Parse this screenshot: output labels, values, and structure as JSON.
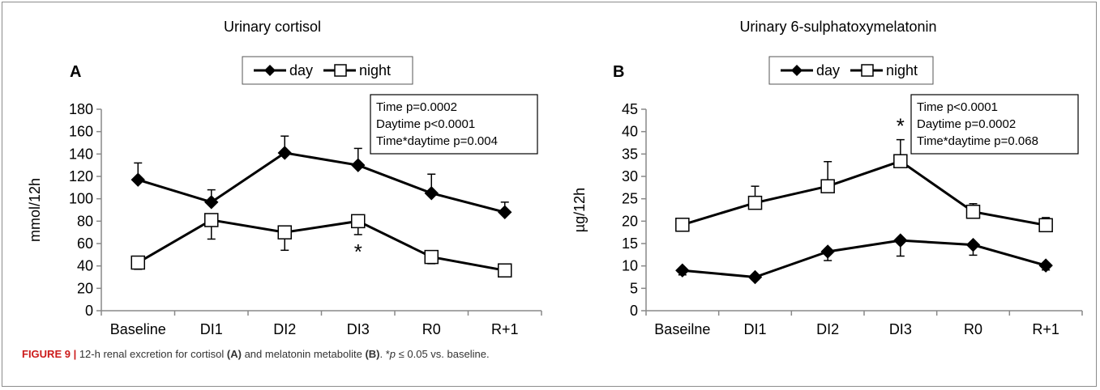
{
  "figure_label": "FIGURE 9 |",
  "caption": {
    "p1": " 12-h renal excretion for cortisol ",
    "a": "(A)",
    "p2": " and melatonin metabolite ",
    "b": "(B)",
    "p3": ". *",
    "p_italic": "p",
    "p4": " ≤ 0.05 vs. baseline."
  },
  "colors": {
    "axis": "#888888",
    "line": "#000000",
    "night_fill": "#ffffff",
    "day_fill": "#000000"
  },
  "chart_data": [
    {
      "type": "line",
      "panel": "A",
      "title": "Urinary cortisol",
      "ylabel": "mmol/12h",
      "xlabel": "",
      "categories": [
        "Baseline",
        "DI1",
        "DI2",
        "DI3",
        "R0",
        "R+1"
      ],
      "ylim": [
        0,
        180
      ],
      "yticks": [
        0,
        20,
        40,
        60,
        80,
        100,
        120,
        140,
        160,
        180
      ],
      "legend": {
        "placement": "top-center",
        "entries": [
          "day",
          "night"
        ]
      },
      "series": [
        {
          "name": "day",
          "marker": "filled-diamond",
          "values": [
            117,
            97,
            141,
            130,
            105,
            88
          ],
          "error": [
            15,
            11,
            15,
            15,
            17,
            9
          ]
        },
        {
          "name": "night",
          "marker": "open-square",
          "values": [
            43,
            81,
            70,
            80,
            48,
            36
          ],
          "error": [
            6,
            17,
            16,
            12,
            6,
            0
          ]
        }
      ],
      "stats": [
        "Time p=0.0002",
        "Daytime p<0.0001",
        "Time*daytime p=0.004"
      ],
      "annotations": [
        {
          "text": "*",
          "category": "DI3",
          "series": "night",
          "position": "below"
        }
      ],
      "grid": false
    },
    {
      "type": "line",
      "panel": "B",
      "title": "Urinary 6-sulphatoxymelatonin",
      "ylabel": "µg/12h",
      "xlabel": "",
      "categories": [
        "Baseilne",
        "DI1",
        "DI2",
        "DI3",
        "R0",
        "R+1"
      ],
      "ylim": [
        0,
        45
      ],
      "yticks": [
        0,
        5,
        10,
        15,
        20,
        25,
        30,
        35,
        40,
        45
      ],
      "legend": {
        "placement": "top-center",
        "entries": [
          "day",
          "night"
        ]
      },
      "series": [
        {
          "name": "day",
          "marker": "filled-diamond",
          "values": [
            9,
            7.5,
            13.2,
            15.7,
            14.7,
            10.1
          ],
          "error": [
            1,
            0.6,
            2,
            3.5,
            2.3,
            1
          ]
        },
        {
          "name": "night",
          "marker": "open-square",
          "values": [
            19.2,
            24.1,
            27.8,
            33.4,
            22.1,
            19.1
          ],
          "error": [
            1.2,
            3.7,
            5.5,
            4.8,
            1.8,
            1.7
          ]
        }
      ],
      "stats": [
        "Time p<0.0001",
        "Daytime p=0.0002",
        "Time*daytime p=0.068"
      ],
      "annotations": [
        {
          "text": "*",
          "category": "DI3",
          "series": "night",
          "position": "above"
        }
      ],
      "grid": false
    }
  ]
}
